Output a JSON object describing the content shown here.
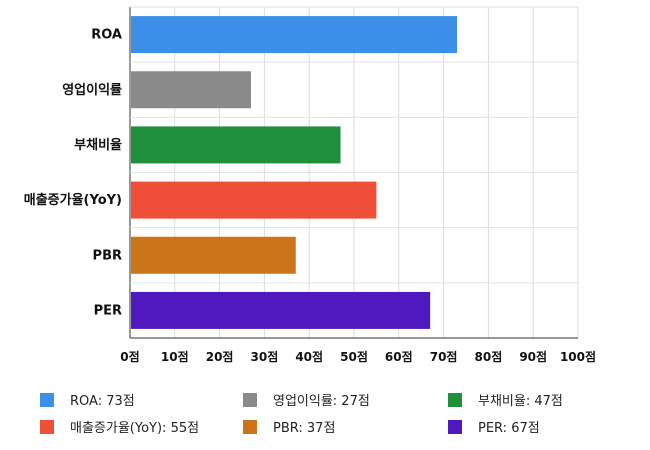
{
  "chart_data": {
    "type": "bar",
    "orientation": "horizontal",
    "categories": [
      "ROA",
      "영업이익률",
      "부채비율",
      "매출증가율(YoY)",
      "PBR",
      "PER"
    ],
    "values": [
      73,
      27,
      47,
      55,
      37,
      67
    ],
    "colors": [
      "#3b8fe8",
      "#8a8a8a",
      "#1e8f3a",
      "#ef4f38",
      "#cc7419",
      "#5019bf"
    ],
    "xlim": [
      0,
      100
    ],
    "xticks": [
      "0점",
      "10점",
      "20점",
      "30점",
      "40점",
      "50점",
      "60점",
      "70점",
      "80점",
      "90점",
      "100점"
    ],
    "grid": true,
    "legend_position": "bottom",
    "legend": [
      "ROA: 73점",
      "영업이익률: 27점",
      "부채비율: 47점",
      "매출증가율(YoY): 55점",
      "PBR: 37점",
      "PER: 67점"
    ]
  }
}
